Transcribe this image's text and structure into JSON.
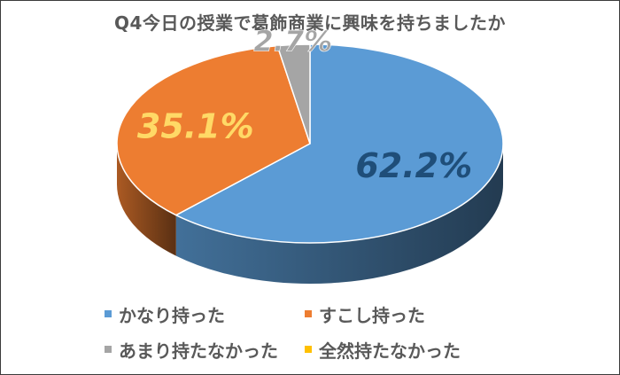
{
  "chart_data": {
    "type": "pie",
    "title": "Q4今日の授業で葛飾商業に興味を持ちましたか",
    "categories": [
      "かなり持った",
      "すこし持った",
      "あまり持たなかった",
      "全然持たなかった"
    ],
    "values": [
      62.2,
      35.1,
      2.7,
      0
    ],
    "data_labels": [
      "62.2%",
      "35.1%",
      "2.7%",
      ""
    ],
    "colors": [
      "#5b9bd5",
      "#ed7d31",
      "#a5a5a5",
      "#ffc000"
    ],
    "label_colors": [
      "#1f4e79",
      "#ffd966",
      "#a5a5a5",
      "#ffc000"
    ],
    "legend_position": "bottom",
    "style": "3d-pie"
  }
}
